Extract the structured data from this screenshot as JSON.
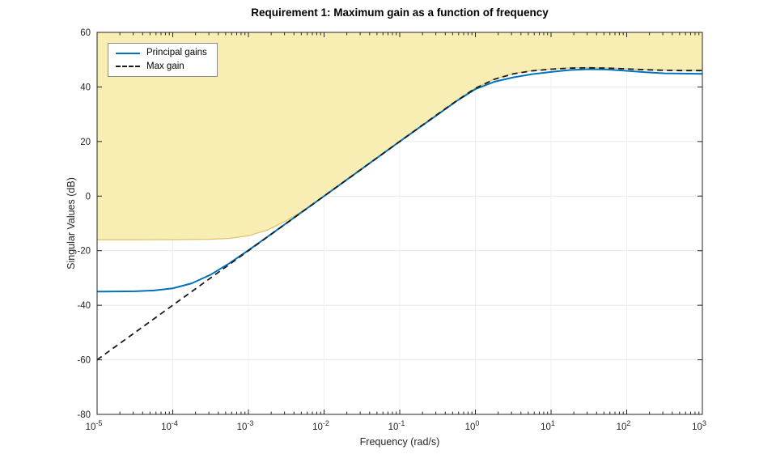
{
  "chart_data": {
    "type": "line",
    "title": "Requirement 1: Maximum gain as a function of frequency",
    "xlabel": "Frequency (rad/s)",
    "ylabel": "Singular Values (dB)",
    "x_scale": "log",
    "xlim_log10": [
      -5,
      3
    ],
    "ylim": [
      -80,
      60
    ],
    "x_tick_exponents": [
      -5,
      -4,
      -3,
      -2,
      -1,
      0,
      1,
      2,
      3
    ],
    "x_tick_base": "10",
    "y_ticks": [
      -80,
      -60,
      -40,
      -20,
      0,
      20,
      40,
      60
    ],
    "grid": true,
    "grid_color": "#e6e6e6",
    "axis_color": "#262626",
    "legend_position": "top-left-inside",
    "legend": [
      {
        "label": "Principal gains",
        "color": "#0072BD",
        "style": "solid"
      },
      {
        "label": "Max gain",
        "color": "#1a1a1a",
        "style": "dashed"
      }
    ],
    "region": {
      "name": "requirement-region",
      "fill": "#f8edb3",
      "edge": "#dcc266",
      "fill_to": 60,
      "bound_x": [
        -5,
        -4.75,
        -4.5,
        -4.25,
        -4,
        -3.75,
        -3.5,
        -3.25,
        -3,
        -2.75,
        -2.5,
        -2.25,
        -2,
        -1.75,
        -1.5,
        -1.25,
        -1,
        -0.75,
        -0.5,
        -0.25,
        0,
        0.25,
        0.5,
        0.75,
        1,
        1.25,
        1.5,
        1.75,
        2,
        2.25,
        2.5,
        2.75,
        3
      ],
      "bound_y": [
        -16,
        -16,
        -16,
        -15.99,
        -15.96,
        -15.89,
        -15.83,
        -15.49,
        -14.54,
        -12.46,
        -9.03,
        -4.92,
        0.05,
        5.05,
        10.05,
        15.05,
        20.05,
        25.05,
        30.05,
        34.95,
        39.6,
        42.9,
        44.9,
        46.0,
        46.6,
        47.0,
        47.1,
        47.0,
        46.7,
        46.4,
        46.2,
        46.1,
        46.1
      ]
    },
    "series": [
      {
        "name": "Principal gains",
        "color": "#0072BD",
        "width": 2,
        "dash": "",
        "x": [
          -5,
          -4.75,
          -4.5,
          -4.25,
          -4,
          -3.75,
          -3.5,
          -3.25,
          -3,
          -2.75,
          -2.5,
          -2.25,
          -2,
          -1.75,
          -1.5,
          -1.25,
          -1,
          -0.75,
          -0.5,
          -0.25,
          0,
          0.25,
          0.5,
          0.75,
          1,
          1.25,
          1.5,
          1.75,
          2,
          2.25,
          2.5,
          2.75,
          3
        ],
        "y": [
          -35.0,
          -34.96,
          -34.87,
          -34.59,
          -33.81,
          -31.99,
          -28.81,
          -24.59,
          -19.86,
          -14.96,
          -9.99,
          -4.99,
          0.0,
          5.0,
          10.0,
          15.0,
          20.0,
          24.95,
          29.85,
          34.8,
          39.2,
          41.9,
          43.5,
          44.7,
          45.5,
          46.2,
          46.5,
          46.4,
          45.9,
          45.4,
          45.0,
          44.9,
          44.8
        ]
      },
      {
        "name": "Max gain",
        "color": "#1a1a1a",
        "width": 1.8,
        "dash": "7,5",
        "x": [
          -5,
          -4.75,
          -4.5,
          -4.25,
          -4,
          -3.75,
          -3.5,
          -3.25,
          -3,
          -2.75,
          -2.5,
          -2.25,
          -2,
          -1.75,
          -1.5,
          -1.25,
          -1,
          -0.75,
          -0.5,
          -0.25,
          0,
          0.25,
          0.5,
          0.75,
          1,
          1.25,
          1.5,
          1.75,
          2,
          2.25,
          2.5,
          2.75,
          3
        ],
        "y": [
          -60,
          -55,
          -50,
          -45,
          -40,
          -35,
          -30,
          -25,
          -20,
          -15,
          -10,
          -5,
          0,
          5,
          10,
          15,
          20,
          25,
          30,
          34.9,
          39.5,
          42.8,
          44.8,
          45.9,
          46.5,
          46.9,
          47.0,
          46.9,
          46.6,
          46.3,
          46.1,
          46.0,
          46.0
        ]
      }
    ]
  }
}
